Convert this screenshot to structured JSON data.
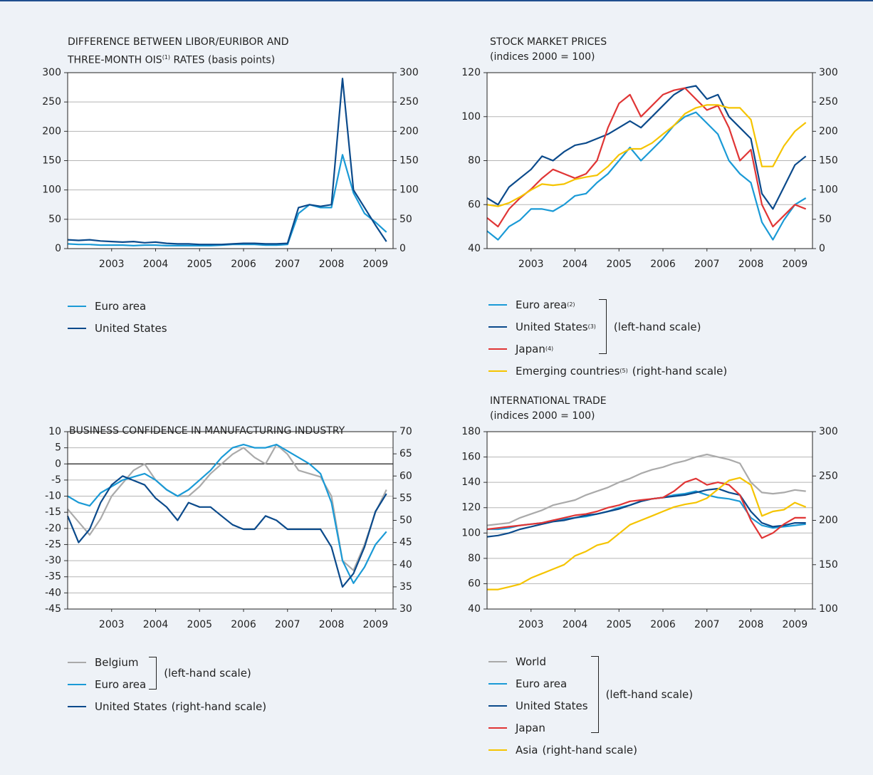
{
  "chart_data": [
    {
      "type": "line",
      "title": "DIFFERENCE BETWEEN LIBOR/EURIBOR AND",
      "subtitle": "THREE-MONTH OIS",
      "subtitle_note": "(1)",
      "subtitle_end": "RATES (basis points)",
      "x": [
        2002.5,
        2002.75,
        2003,
        2003.25,
        2003.5,
        2003.75,
        2004,
        2004.25,
        2004.5,
        2004.75,
        2005,
        2005.25,
        2005.5,
        2005.75,
        2006,
        2006.25,
        2006.5,
        2006.75,
        2007,
        2007.25,
        2007.5,
        2007.75,
        2008,
        2008.25,
        2008.5,
        2008.75,
        2009,
        2009.25,
        2009.5,
        2009.75
      ],
      "xlim": [
        2002.5,
        2009.9
      ],
      "xticks": [
        {
          "value": 2003.5,
          "label": "2003"
        },
        {
          "value": 2004.5,
          "label": "2004"
        },
        {
          "value": 2005.5,
          "label": "2005"
        },
        {
          "value": 2006.5,
          "label": "2006"
        },
        {
          "value": 2007.5,
          "label": "2007"
        },
        {
          "value": 2008.5,
          "label": "2008"
        },
        {
          "value": 2009.5,
          "label": "2009"
        }
      ],
      "ylim": [
        0,
        300
      ],
      "yticks": [
        0,
        50,
        100,
        150,
        200,
        250,
        300
      ],
      "y2lim": [
        0,
        300
      ],
      "y2ticks": [
        0,
        50,
        100,
        150,
        200,
        250,
        300
      ],
      "grid": true,
      "series": [
        {
          "name": "Euro area",
          "color": "#1a9ad6",
          "values": [
            8,
            7,
            7,
            6,
            6,
            6,
            5,
            6,
            6,
            5,
            5,
            5,
            5,
            5,
            6,
            7,
            7,
            7,
            6,
            6,
            7,
            60,
            75,
            70,
            70,
            160,
            95,
            60,
            45,
            28
          ]
        },
        {
          "name": "United States",
          "color": "#0b4a8b",
          "values": [
            15,
            14,
            15,
            13,
            12,
            11,
            12,
            10,
            11,
            9,
            8,
            8,
            7,
            7,
            7,
            8,
            9,
            9,
            8,
            8,
            9,
            70,
            75,
            72,
            75,
            290,
            100,
            70,
            40,
            12
          ]
        }
      ]
    },
    {
      "type": "line",
      "title": "STOCK MARKET PRICES",
      "subtitle": "(indices 2000 = 100)",
      "left_scale_label": "(left-hand scale)",
      "x": [
        2002.5,
        2002.75,
        2003,
        2003.25,
        2003.5,
        2003.75,
        2004,
        2004.25,
        2004.5,
        2004.75,
        2005,
        2005.25,
        2005.5,
        2005.75,
        2006,
        2006.25,
        2006.5,
        2006.75,
        2007,
        2007.25,
        2007.5,
        2007.75,
        2008,
        2008.25,
        2008.5,
        2008.75,
        2009,
        2009.25,
        2009.5,
        2009.75
      ],
      "xlim": [
        2002.5,
        2009.9
      ],
      "xticks": [
        {
          "value": 2003.5,
          "label": "2003"
        },
        {
          "value": 2004.5,
          "label": "2004"
        },
        {
          "value": 2005.5,
          "label": "2005"
        },
        {
          "value": 2006.5,
          "label": "2006"
        },
        {
          "value": 2007.5,
          "label": "2007"
        },
        {
          "value": 2008.5,
          "label": "2008"
        },
        {
          "value": 2009.5,
          "label": "2009"
        }
      ],
      "ylim": [
        40,
        120
      ],
      "yticks": [
        40,
        60,
        80,
        100,
        120
      ],
      "y2lim": [
        0,
        300
      ],
      "y2ticks": [
        0,
        50,
        100,
        150,
        200,
        250,
        300
      ],
      "grid": true,
      "series": [
        {
          "name": "Euro area",
          "note": "(2)",
          "color": "#1a9ad6",
          "values": [
            48,
            44,
            50,
            53,
            58,
            58,
            57,
            60,
            64,
            65,
            70,
            74,
            80,
            86,
            80,
            85,
            90,
            96,
            100,
            102,
            97,
            92,
            80,
            74,
            70,
            52,
            44,
            53,
            60,
            63
          ]
        },
        {
          "name": "United States",
          "note": "(3)",
          "color": "#0b4a8b",
          "values": [
            63,
            60,
            68,
            72,
            76,
            82,
            80,
            84,
            87,
            88,
            90,
            92,
            95,
            98,
            95,
            100,
            105,
            110,
            113,
            114,
            108,
            110,
            100,
            95,
            90,
            65,
            58,
            68,
            78,
            82
          ]
        },
        {
          "name": "Japan",
          "note": "(4)",
          "color": "#e03535",
          "values": [
            54,
            50,
            58,
            63,
            67,
            72,
            76,
            74,
            72,
            74,
            80,
            95,
            106,
            110,
            100,
            105,
            110,
            112,
            113,
            108,
            103,
            105,
            95,
            80,
            85,
            60,
            50,
            55,
            60,
            58
          ]
        },
        {
          "name": "Emerging countries",
          "note": "(5)",
          "scale_label": "(right-hand scale)",
          "axis": "y2",
          "color": "#f5c400",
          "values": [
            75,
            72,
            78,
            88,
            100,
            110,
            108,
            110,
            118,
            122,
            125,
            140,
            160,
            170,
            170,
            180,
            195,
            210,
            230,
            240,
            245,
            245,
            240,
            240,
            220,
            140,
            140,
            175,
            200,
            215
          ]
        }
      ]
    },
    {
      "type": "line",
      "title": "BUSINESS CONFIDENCE IN MANUFACTURING INDUSTRY",
      "left_scale_label": "(left-hand scale)",
      "x": [
        2002.5,
        2002.75,
        2003,
        2003.25,
        2003.5,
        2003.75,
        2004,
        2004.25,
        2004.5,
        2004.75,
        2005,
        2005.25,
        2005.5,
        2005.75,
        2006,
        2006.25,
        2006.5,
        2006.75,
        2007,
        2007.25,
        2007.5,
        2007.75,
        2008,
        2008.25,
        2008.5,
        2008.75,
        2009,
        2009.25,
        2009.5,
        2009.75
      ],
      "xlim": [
        2002.5,
        2009.9
      ],
      "xticks": [
        {
          "value": 2003.5,
          "label": "2003"
        },
        {
          "value": 2004.5,
          "label": "2004"
        },
        {
          "value": 2005.5,
          "label": "2005"
        },
        {
          "value": 2006.5,
          "label": "2006"
        },
        {
          "value": 2007.5,
          "label": "2007"
        },
        {
          "value": 2008.5,
          "label": "2008"
        },
        {
          "value": 2009.5,
          "label": "2009"
        }
      ],
      "ylim": [
        -45,
        10
      ],
      "yticks": [
        -45,
        -40,
        -35,
        -30,
        -25,
        -20,
        -15,
        -10,
        -5,
        0,
        5,
        10
      ],
      "y2lim": [
        30,
        70
      ],
      "y2ticks": [
        30,
        35,
        40,
        45,
        50,
        55,
        60,
        65,
        70
      ],
      "grid": true,
      "zero_line": true,
      "series": [
        {
          "name": "Belgium",
          "color": "#aaaaaa",
          "values": [
            -14,
            -18,
            -22,
            -17,
            -10,
            -6,
            -2,
            0,
            -5,
            -8,
            -10,
            -10,
            -7,
            -3,
            0,
            3,
            5,
            2,
            0,
            6,
            3,
            -2,
            -3,
            -4,
            -10,
            -30,
            -33,
            -25,
            -15,
            -8
          ]
        },
        {
          "name": "Euro area",
          "color": "#1a9ad6",
          "values": [
            -10,
            -12,
            -13,
            -9,
            -7,
            -5,
            -4,
            -3,
            -5,
            -8,
            -10,
            -8,
            -5,
            -2,
            2,
            5,
            6,
            5,
            5,
            6,
            4,
            2,
            0,
            -3,
            -12,
            -30,
            -37,
            -32,
            -25,
            -21
          ]
        },
        {
          "name": "United States",
          "scale_label": "(right-hand scale)",
          "axis": "y2",
          "color": "#0b4a8b",
          "values": [
            51,
            45,
            48,
            54,
            58,
            60,
            59,
            58,
            55,
            53,
            50,
            54,
            53,
            53,
            51,
            49,
            48,
            48,
            51,
            50,
            48,
            48,
            48,
            48,
            44,
            35,
            38,
            44,
            52,
            56
          ]
        }
      ]
    },
    {
      "type": "line",
      "title": "INTERNATIONAL TRADE",
      "subtitle": "(indices 2000 = 100)",
      "left_scale_label": "(left-hand scale)",
      "x": [
        2002.5,
        2002.75,
        2003,
        2003.25,
        2003.5,
        2003.75,
        2004,
        2004.25,
        2004.5,
        2004.75,
        2005,
        2005.25,
        2005.5,
        2005.75,
        2006,
        2006.25,
        2006.5,
        2006.75,
        2007,
        2007.25,
        2007.5,
        2007.75,
        2008,
        2008.25,
        2008.5,
        2008.75,
        2009,
        2009.25,
        2009.5,
        2009.75
      ],
      "xlim": [
        2002.5,
        2009.9
      ],
      "xticks": [
        {
          "value": 2003.5,
          "label": "2003"
        },
        {
          "value": 2004.5,
          "label": "2004"
        },
        {
          "value": 2005.5,
          "label": "2005"
        },
        {
          "value": 2006.5,
          "label": "2006"
        },
        {
          "value": 2007.5,
          "label": "2007"
        },
        {
          "value": 2008.5,
          "label": "2008"
        },
        {
          "value": 2009.5,
          "label": "2009"
        }
      ],
      "ylim": [
        40,
        180
      ],
      "yticks": [
        40,
        60,
        80,
        100,
        120,
        140,
        160,
        180
      ],
      "y2lim": [
        100,
        300
      ],
      "y2ticks": [
        100,
        150,
        200,
        250,
        300
      ],
      "grid": true,
      "series": [
        {
          "name": "World",
          "color": "#aaaaaa",
          "values": [
            106,
            107,
            108,
            112,
            115,
            118,
            122,
            124,
            126,
            130,
            133,
            136,
            140,
            143,
            147,
            150,
            152,
            155,
            157,
            160,
            162,
            160,
            158,
            155,
            140,
            132,
            131,
            132,
            134,
            133
          ]
        },
        {
          "name": "Euro area",
          "color": "#1a9ad6",
          "values": [
            103,
            103,
            104,
            106,
            107,
            108,
            110,
            111,
            112,
            113,
            115,
            117,
            120,
            122,
            125,
            127,
            128,
            130,
            131,
            133,
            130,
            128,
            127,
            125,
            112,
            106,
            104,
            105,
            106,
            107
          ]
        },
        {
          "name": "United States",
          "color": "#0b4a8b",
          "values": [
            97,
            98,
            100,
            103,
            105,
            107,
            109,
            110,
            112,
            114,
            115,
            117,
            119,
            122,
            125,
            127,
            128,
            129,
            130,
            132,
            134,
            135,
            132,
            130,
            117,
            108,
            105,
            106,
            108,
            108
          ]
        },
        {
          "name": "Japan",
          "color": "#e03535",
          "values": [
            103,
            104,
            105,
            106,
            107,
            108,
            110,
            112,
            114,
            115,
            117,
            120,
            122,
            125,
            126,
            127,
            128,
            133,
            140,
            143,
            138,
            140,
            138,
            130,
            110,
            96,
            100,
            107,
            112,
            112
          ]
        },
        {
          "name": "Asia",
          "scale_label": "(right-hand scale)",
          "axis": "y2",
          "color": "#f5c400",
          "values": [
            122,
            122,
            125,
            128,
            135,
            140,
            145,
            150,
            160,
            165,
            172,
            175,
            185,
            195,
            200,
            205,
            210,
            215,
            218,
            220,
            225,
            235,
            245,
            248,
            240,
            205,
            210,
            212,
            220,
            215
          ]
        }
      ]
    }
  ]
}
